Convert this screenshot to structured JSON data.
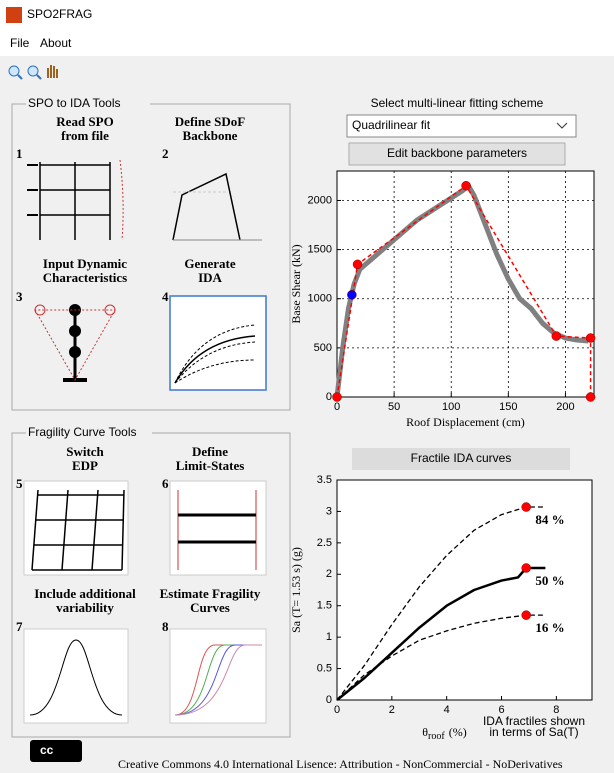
{
  "window": {
    "title": "SPO2FRAG"
  },
  "menu": [
    "File",
    "About"
  ],
  "spo_panel": {
    "title": "SPO to IDA Tools",
    "buttons": [
      {
        "num": "1",
        "label": [
          "Read SPO",
          "from file"
        ]
      },
      {
        "num": "2",
        "label": [
          "Define SDoF",
          "Backbone"
        ]
      },
      {
        "num": "3",
        "label": [
          "Input Dynamic",
          "Characteristics"
        ]
      },
      {
        "num": "4",
        "label": [
          "Generate",
          "IDA"
        ]
      }
    ]
  },
  "fragility_panel": {
    "title": "Fragility Curve Tools",
    "buttons": [
      {
        "num": "5",
        "label": [
          "Switch",
          "EDP"
        ]
      },
      {
        "num": "6",
        "label": [
          "Define",
          "Limit-States"
        ]
      },
      {
        "num": "7",
        "label": [
          "Include additional",
          "variability"
        ]
      },
      {
        "num": "8",
        "label": [
          "Estimate Fragility",
          "Curves"
        ]
      }
    ]
  },
  "fitting": {
    "label": "Select multi-linear fitting scheme",
    "selected": "Quadrilinear fit",
    "button": "Edit backbone parameters"
  },
  "fractile_button": "Fractile IDA curves",
  "footer": {
    "logo": "cc",
    "text": "Creative Commons 4.0 International Lisence: Attribution - NonCommercial - NoDerivatives"
  },
  "chart_data": [
    {
      "type": "line",
      "xlabel": "Roof Displacement (cm)",
      "ylabel": "Base Shear (kN)",
      "xlim": [
        0,
        225
      ],
      "ylim": [
        0,
        2300
      ],
      "xticks": [
        0,
        50,
        100,
        150,
        200
      ],
      "yticks": [
        0,
        500,
        1000,
        1500,
        2000
      ],
      "grid": true,
      "series": [
        {
          "color": "#808080",
          "width": 5,
          "marker": false,
          "x": [
            0,
            5,
            10,
            15,
            20,
            30,
            50,
            70,
            90,
            110,
            115,
            120,
            130,
            140,
            150,
            160,
            170,
            180,
            190,
            200,
            210,
            220
          ],
          "values": [
            0,
            500,
            900,
            1150,
            1300,
            1400,
            1600,
            1800,
            1950,
            2100,
            2150,
            2050,
            1750,
            1450,
            1200,
            1000,
            900,
            750,
            650,
            600,
            580,
            570
          ]
        },
        {
          "color": "#ff0000",
          "width": 1.5,
          "dash": "4 3",
          "marker": true,
          "x": [
            0,
            18,
            113,
            192,
            222,
            222
          ],
          "values": [
            0,
            1350,
            2150,
            620,
            600,
            0
          ]
        },
        {
          "color": "#0000ff",
          "width": 0,
          "marker": true,
          "x": [
            13
          ],
          "values": [
            1040
          ]
        }
      ]
    },
    {
      "type": "line",
      "xlabel": [
        "θ",
        "roof",
        "(%)"
      ],
      "ylabel": "Sa (T= 1.53 s) (g)",
      "xlim": [
        0,
        9.3
      ],
      "ylim": [
        0,
        3.5
      ],
      "xticks": [
        0,
        2,
        4,
        6,
        8
      ],
      "yticks": [
        0,
        0.5,
        1,
        1.5,
        2,
        2.5,
        3,
        3.5
      ],
      "grid": false,
      "annotation": [
        "IDA fractiles shown",
        "in terms of Sa(T)"
      ],
      "series": [
        {
          "name": "84 %",
          "color": "#000000",
          "width": 1.3,
          "dash": "5 3",
          "marker": false,
          "x": [
            0,
            1,
            2,
            3,
            4,
            5,
            6,
            6.9,
            7.6
          ],
          "values": [
            0,
            0.55,
            1.2,
            1.8,
            2.3,
            2.7,
            2.95,
            3.07,
            3.07
          ]
        },
        {
          "name": "50 %",
          "color": "#000000",
          "width": 2.5,
          "marker": false,
          "x": [
            0,
            1,
            2,
            3,
            4,
            5,
            6,
            6.6,
            6.9,
            7.6
          ],
          "values": [
            0,
            0.35,
            0.75,
            1.15,
            1.5,
            1.75,
            1.9,
            1.95,
            2.1,
            2.1
          ]
        },
        {
          "name": "16 %",
          "color": "#000000",
          "width": 1.3,
          "dash": "5 3",
          "marker": false,
          "x": [
            0,
            1,
            2,
            3,
            4,
            5,
            6,
            6.9,
            7.6
          ],
          "values": [
            0,
            0.4,
            0.7,
            0.95,
            1.1,
            1.22,
            1.3,
            1.35,
            1.35
          ]
        },
        {
          "color": "#ff0000",
          "width": 0,
          "marker": true,
          "x": [
            6.9,
            6.9,
            6.9
          ],
          "values": [
            3.07,
            2.1,
            1.35
          ]
        }
      ]
    }
  ]
}
